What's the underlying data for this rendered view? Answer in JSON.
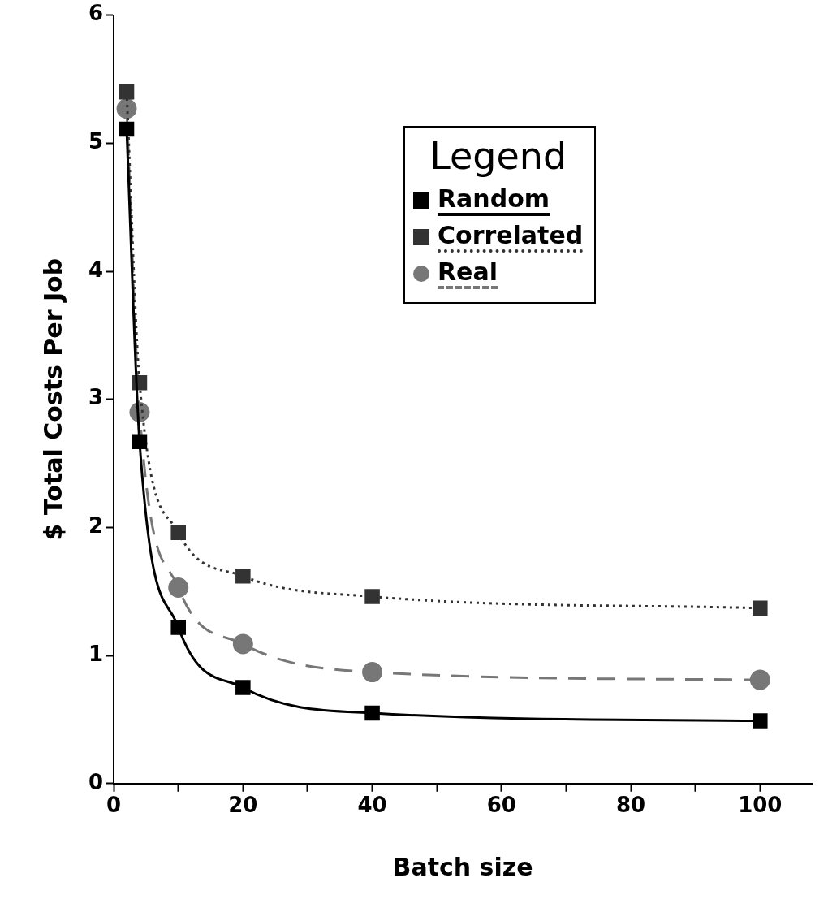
{
  "chart_data": {
    "type": "line",
    "xlabel": "Batch size",
    "ylabel": "$ Total Costs Per Job",
    "legend_title": "Legend",
    "legend": "top right",
    "grid": false,
    "x": [
      2,
      4,
      10,
      20,
      40,
      100
    ],
    "xlim": [
      0,
      108
    ],
    "xticks": [
      0,
      {
        "value": 10,
        "label": null
      },
      20,
      {
        "value": 30,
        "label": null
      },
      40,
      {
        "value": 50,
        "label": null
      },
      60,
      {
        "value": 70,
        "label": null
      },
      80,
      {
        "value": 90,
        "label": null
      },
      100
    ],
    "ylim": [
      0,
      6
    ],
    "yticks": [
      0,
      1,
      2,
      3,
      4,
      5,
      6
    ],
    "series": [
      {
        "name": "Random",
        "color": "#000000",
        "marker": "square",
        "line_style": "solid",
        "values": [
          5.11,
          2.67,
          1.22,
          0.75,
          0.55,
          0.49
        ]
      },
      {
        "name": "Correlated",
        "color": "#333333",
        "marker": "square",
        "line_style": "dotted",
        "values": [
          5.4,
          3.13,
          1.96,
          1.62,
          1.46,
          1.37
        ]
      },
      {
        "name": "Real",
        "color": "#777777",
        "marker": "circle",
        "line_style": "dashed",
        "values": [
          5.27,
          2.9,
          1.53,
          1.09,
          0.87,
          0.81
        ]
      }
    ]
  }
}
